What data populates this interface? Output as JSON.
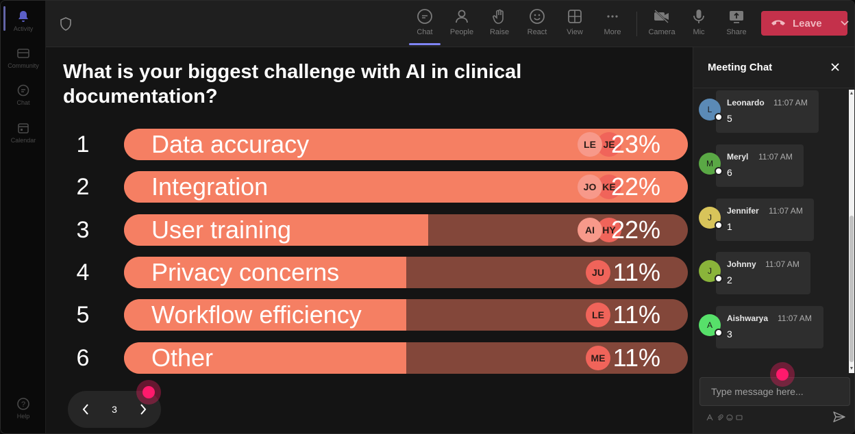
{
  "rail": {
    "items": [
      {
        "label": "Activity"
      },
      {
        "label": "Community"
      },
      {
        "label": "Chat"
      },
      {
        "label": "Calendar"
      },
      {
        "label": "Help"
      }
    ]
  },
  "toolbar": {
    "chat": "Chat",
    "people": "People",
    "raise": "Raise",
    "react": "React",
    "view": "View",
    "more": "More",
    "camera": "Camera",
    "mic": "Mic",
    "share": "Share",
    "leave": "Leave"
  },
  "poll": {
    "question": "What is your biggest challenge with AI in clinical documentation?",
    "options": [
      {
        "rank": "1",
        "label": "Data accuracy",
        "percent": "23%",
        "fill": 1.0,
        "chips": [
          "JE",
          "LE"
        ]
      },
      {
        "rank": "2",
        "label": "Integration",
        "percent": "22%",
        "fill": 1.0,
        "chips": [
          "KE",
          "JO"
        ]
      },
      {
        "rank": "3",
        "label": "User training",
        "percent": "22%",
        "fill": 0.54,
        "chips": [
          "HY",
          "AI"
        ]
      },
      {
        "rank": "4",
        "label": "Privacy concerns",
        "percent": "11%",
        "fill": 0.5,
        "chips": [
          "JU"
        ]
      },
      {
        "rank": "5",
        "label": "Workflow efficiency",
        "percent": "11%",
        "fill": 0.5,
        "chips": [
          "LE"
        ]
      },
      {
        "rank": "6",
        "label": "Other",
        "percent": "11%",
        "fill": 0.5,
        "chips": [
          "ME"
        ]
      }
    ]
  },
  "pager": {
    "page": "3"
  },
  "chat": {
    "title": "Meeting Chat",
    "messages": [
      {
        "initial": "L",
        "name": "Leonardo",
        "time": "11:07 AM",
        "text": "5",
        "color": "#5b8ab6"
      },
      {
        "initial": "M",
        "name": "Meryl",
        "time": "11:07 AM",
        "text": "6",
        "color": "#5aa845"
      },
      {
        "initial": "J",
        "name": "Jennifer",
        "time": "11:07 AM",
        "text": "1",
        "color": "#d8c45a"
      },
      {
        "initial": "J",
        "name": "Johnny",
        "time": "11:07 AM",
        "text": "2",
        "color": "#8ab43a"
      },
      {
        "initial": "A",
        "name": "Aishwarya",
        "time": "11:07 AM",
        "text": "3",
        "color": "#57e06a"
      }
    ],
    "placeholder": "Type message here..."
  },
  "colors": {
    "bar_fill": "#f57f63",
    "bar_track": "#83473a",
    "leave": "#c4314b",
    "accent": "#7f85f5"
  }
}
